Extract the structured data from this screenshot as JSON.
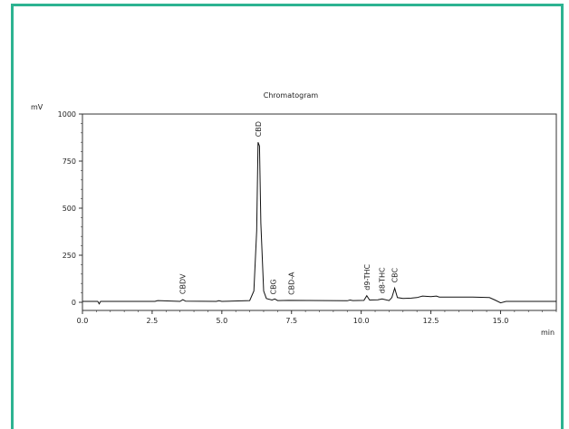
{
  "chart_data": {
    "type": "line",
    "title": "Chromatogram",
    "xlabel": "min",
    "ylabel": "mV",
    "xlim": [
      0,
      17
    ],
    "ylim": [
      0,
      1000
    ],
    "x_ticks": [
      "0.0",
      "2.5",
      "5.0",
      "7.5",
      "10.0",
      "12.5",
      "15.0"
    ],
    "y_ticks": [
      "0",
      "250",
      "500",
      "750",
      "1000"
    ],
    "grid": false,
    "series": [
      {
        "x": [
          0,
          0.55,
          0.6,
          0.65,
          2.6,
          2.7,
          3.5,
          3.6,
          3.7,
          4.8,
          4.9,
          5.0,
          6.0,
          6.15,
          6.25,
          6.3,
          6.35,
          6.4,
          6.5,
          6.6,
          6.8,
          6.9,
          7.0,
          7.4,
          9.5,
          9.6,
          9.7,
          10.1,
          10.2,
          10.3,
          10.6,
          10.75,
          11.0,
          11.1,
          11.2,
          11.3,
          11.5,
          11.8,
          12.0,
          12.2,
          12.5,
          12.7,
          12.8,
          13.0,
          14.0,
          14.6,
          14.8,
          15.0,
          15.2,
          15.5,
          17
        ],
        "y": [
          5,
          5,
          -8,
          5,
          5,
          9,
          5,
          14,
          6,
          5,
          8,
          5,
          9,
          60,
          380,
          850,
          830,
          420,
          60,
          20,
          12,
          18,
          9,
          10,
          8,
          12,
          9,
          10,
          35,
          12,
          13,
          18,
          9,
          25,
          75,
          25,
          20,
          22,
          25,
          33,
          30,
          33,
          28,
          28,
          28,
          25,
          12,
          -3,
          5,
          5,
          5
        ]
      }
    ],
    "peaks": [
      {
        "label": "CBDV",
        "x": 3.6
      },
      {
        "label": "CBD",
        "x": 6.3
      },
      {
        "label": "CBG",
        "x": 6.85
      },
      {
        "label": "CBD-A",
        "x": 7.5
      },
      {
        "label": "d9-THC",
        "x": 10.2
      },
      {
        "label": "d8-THC",
        "x": 10.75
      },
      {
        "label": "CBC",
        "x": 11.2
      }
    ]
  }
}
